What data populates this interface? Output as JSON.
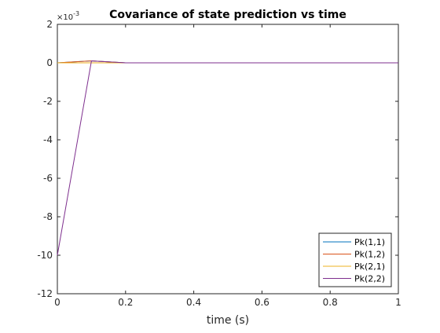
{
  "chart_data": {
    "type": "line",
    "title": "Covariance of state prediction vs time",
    "xlabel": "time (s)",
    "ylabel": "",
    "xlim": [
      0,
      1
    ],
    "ylim": [
      -12,
      2
    ],
    "y_exponent_label": "×10",
    "y_exponent_power": "-3",
    "xticks": [
      0,
      0.2,
      0.4,
      0.6,
      0.8,
      1
    ],
    "xtick_labels": [
      "0",
      "0.2",
      "0.4",
      "0.6",
      "0.8",
      "1"
    ],
    "yticks": [
      2,
      0,
      -2,
      -4,
      -6,
      -8,
      -10,
      -12
    ],
    "ytick_labels": [
      "2",
      "0",
      "-2",
      "-4",
      "-6",
      "-8",
      "-10",
      "-12"
    ],
    "grid": false,
    "legend_position": "bottom-right",
    "x": [
      0,
      0.1,
      0.2,
      0.3,
      0.4,
      0.5,
      0.6,
      0.7,
      0.8,
      0.9,
      1.0
    ],
    "series": [
      {
        "name": "Pk(1,1)",
        "color": "#0072BD",
        "values": [
          0,
          0.1,
          0,
          0,
          0,
          0,
          0,
          0,
          0,
          0,
          0
        ]
      },
      {
        "name": "Pk(1,2)",
        "color": "#D95319",
        "values": [
          0,
          0.1,
          0,
          0,
          0,
          0,
          0,
          0,
          0,
          0,
          0
        ]
      },
      {
        "name": "Pk(2,1)",
        "color": "#EDB120",
        "values": [
          0,
          0,
          0,
          0,
          0,
          0,
          0,
          0,
          0,
          0,
          0
        ]
      },
      {
        "name": "Pk(2,2)",
        "color": "#7E2F8E",
        "values": [
          -10,
          0.1,
          0,
          0,
          0,
          0,
          0,
          0,
          0,
          0,
          0
        ]
      }
    ]
  }
}
